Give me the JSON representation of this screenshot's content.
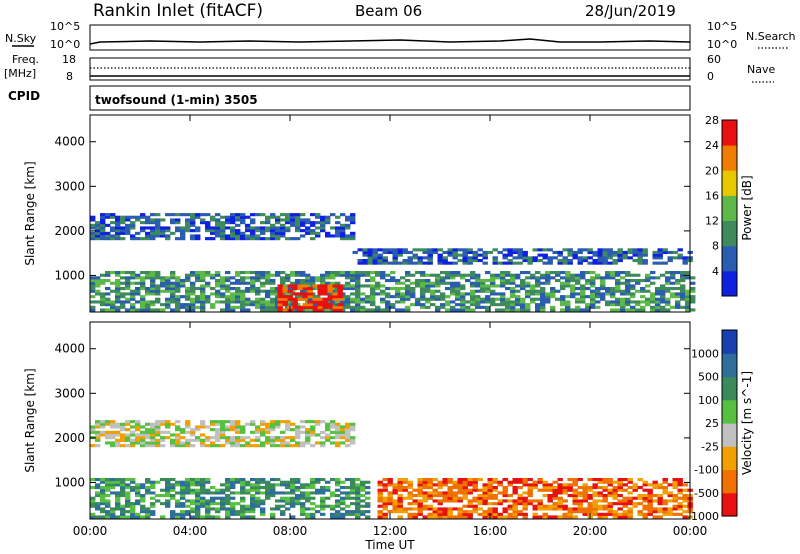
{
  "header": {
    "title": "Rankin Inlet (fitACF)",
    "beam": "Beam 06",
    "date": "28/Jun/2019"
  },
  "top_panel": {
    "nsky_label": "N.Sky",
    "nsearch_label": "N.Search",
    "nsky_ticks": [
      "10^5",
      "10^0"
    ],
    "nsearch_ticks": [
      "10^5",
      "10^0"
    ],
    "freq_label": "Freq.",
    "freq_unit": "[MHz]",
    "freq_ticks": [
      "18",
      "8"
    ],
    "nave_label": "Nave",
    "nave_ticks": [
      "60",
      "0"
    ],
    "cpid_label": "CPID",
    "cpid_text": "twofsound (1-min) 3505"
  },
  "chart_data": [
    {
      "type": "heatmap",
      "title": "",
      "xlabel": "",
      "ylabel": "Slant Range [km]",
      "x_ticks": [
        "00:00",
        "04:00",
        "08:00",
        "12:00",
        "16:00",
        "20:00",
        "00:00"
      ],
      "y_ticks": [
        "1000",
        "2000",
        "3000",
        "4000"
      ],
      "ylim": [
        180,
        4600
      ],
      "colorbar": {
        "label": "Power [dB]",
        "ticks": [
          "4",
          "8",
          "12",
          "16",
          "20",
          "24",
          "28"
        ],
        "colors": [
          "#1020e0",
          "#2a5cb0",
          "#3e8a5c",
          "#5cb848",
          "#e6c800",
          "#f07d00",
          "#e81010"
        ]
      },
      "bands": [
        {
          "start_h": 0.0,
          "end_h": 10.5,
          "r1": 1800,
          "r2": 2400,
          "level": 1
        },
        {
          "start_h": 10.5,
          "end_h": 24.0,
          "r1": 1250,
          "r2": 1600,
          "level": 1
        },
        {
          "start_h": 0.0,
          "end_h": 24.0,
          "r1": 200,
          "r2": 1100,
          "level": 2
        },
        {
          "start_h": 7.5,
          "end_h": 10.0,
          "r1": 200,
          "r2": 800,
          "level": 6
        }
      ]
    },
    {
      "type": "heatmap",
      "title": "",
      "xlabel": "Time UT",
      "ylabel": "Slant Range [km]",
      "x_ticks": [
        "00:00",
        "04:00",
        "08:00",
        "12:00",
        "16:00",
        "20:00",
        "00:00"
      ],
      "y_ticks": [
        "1000",
        "2000",
        "3000",
        "4000"
      ],
      "ylim": [
        180,
        4600
      ],
      "colorbar": {
        "label": "Velocity [m s^-1]",
        "ticks": [
          "1000",
          "500",
          "100",
          "25",
          "-25",
          "-100",
          "-500",
          "-1000"
        ],
        "colors": [
          "#1a3fb0",
          "#2e6e9a",
          "#3a8a5a",
          "#58c040",
          "#c0c0c0",
          "#f0a000",
          "#f07000",
          "#e81010"
        ]
      },
      "bands": [
        {
          "start_h": 0.0,
          "end_h": 10.5,
          "r1": 1800,
          "r2": 2400,
          "level": 4
        },
        {
          "start_h": 0.0,
          "end_h": 11.0,
          "r1": 200,
          "r2": 1100,
          "level": 2
        },
        {
          "start_h": 11.5,
          "end_h": 24.0,
          "r1": 200,
          "r2": 1100,
          "level": 6
        }
      ]
    }
  ]
}
